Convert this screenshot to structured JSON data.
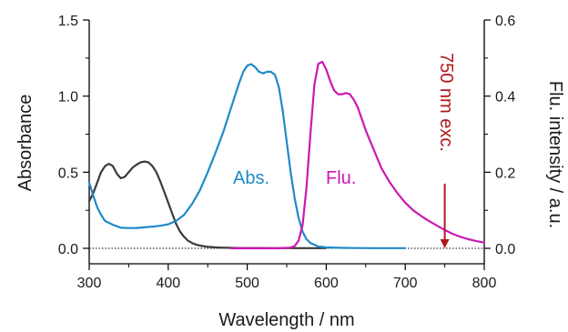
{
  "chart_data": {
    "type": "line",
    "xlabel": "Wavelength / nm",
    "ylabel_left": "Absorbance",
    "ylabel_right": "Flu. intensity / a.u.",
    "xlim": [
      300,
      800
    ],
    "ylim_left": [
      0,
      1.5
    ],
    "ylim_right": [
      0,
      0.6
    ],
    "x_ticks": [
      "300",
      "400",
      "500",
      "600",
      "700",
      "800"
    ],
    "y_left_ticks": [
      "0.0",
      "0.5",
      "1.0",
      "1.5"
    ],
    "y_right_ticks": [
      "0.0",
      "0.2",
      "0.4",
      "0.6"
    ],
    "grid": false,
    "baseline": {
      "axis": "left",
      "y": 0,
      "style": "dotted"
    },
    "series": [
      {
        "id": "dark",
        "axis": "left",
        "color": "#3a3a3a",
        "x": [
          300,
          305,
          310,
          315,
          320,
          325,
          330,
          335,
          340,
          345,
          350,
          355,
          360,
          365,
          370,
          375,
          380,
          385,
          390,
          395,
          400,
          405,
          410,
          415,
          420,
          425,
          430,
          435,
          440,
          450,
          460,
          470,
          480,
          490,
          500,
          520,
          540,
          560,
          580,
          600
        ],
        "y": [
          0.31,
          0.36,
          0.43,
          0.5,
          0.54,
          0.555,
          0.54,
          0.49,
          0.46,
          0.47,
          0.5,
          0.53,
          0.55,
          0.565,
          0.57,
          0.565,
          0.54,
          0.5,
          0.44,
          0.37,
          0.3,
          0.23,
          0.16,
          0.11,
          0.075,
          0.05,
          0.035,
          0.025,
          0.018,
          0.01,
          0.006,
          0.004,
          0.003,
          0.002,
          0.002,
          0.002,
          0.001,
          0.001,
          0.001,
          0.001
        ]
      },
      {
        "id": "abs",
        "name": "Abs.",
        "axis": "left",
        "color": "#1f8ac8",
        "x": [
          300,
          305,
          310,
          315,
          320,
          330,
          340,
          350,
          360,
          370,
          380,
          390,
          400,
          410,
          420,
          430,
          440,
          450,
          460,
          470,
          480,
          490,
          495,
          500,
          505,
          510,
          515,
          520,
          525,
          530,
          535,
          540,
          545,
          550,
          555,
          560,
          565,
          570,
          575,
          580,
          590,
          600,
          620,
          640,
          660,
          680,
          700
        ],
        "y": [
          0.43,
          0.35,
          0.27,
          0.22,
          0.18,
          0.155,
          0.135,
          0.133,
          0.134,
          0.138,
          0.142,
          0.148,
          0.158,
          0.18,
          0.22,
          0.29,
          0.38,
          0.5,
          0.63,
          0.77,
          0.93,
          1.09,
          1.16,
          1.2,
          1.21,
          1.19,
          1.16,
          1.15,
          1.16,
          1.16,
          1.14,
          1.06,
          0.9,
          0.7,
          0.5,
          0.33,
          0.2,
          0.11,
          0.06,
          0.035,
          0.012,
          0.006,
          0.003,
          0.002,
          0.001,
          0.001,
          0.001
        ]
      },
      {
        "id": "flu",
        "name": "Flu.",
        "axis": "right",
        "color": "#cc18b2",
        "x": [
          480,
          500,
          520,
          540,
          555,
          560,
          565,
          570,
          575,
          580,
          585,
          590,
          595,
          600,
          605,
          610,
          615,
          620,
          625,
          630,
          635,
          640,
          645,
          650,
          655,
          660,
          665,
          670,
          680,
          690,
          700,
          710,
          720,
          730,
          740,
          750,
          760,
          770,
          780,
          790,
          800
        ],
        "y": [
          0.0,
          0.0,
          0.0,
          0.0,
          0.002,
          0.006,
          0.02,
          0.06,
          0.16,
          0.3,
          0.43,
          0.485,
          0.49,
          0.47,
          0.44,
          0.415,
          0.405,
          0.405,
          0.408,
          0.405,
          0.39,
          0.37,
          0.34,
          0.31,
          0.285,
          0.26,
          0.235,
          0.21,
          0.175,
          0.145,
          0.12,
          0.1,
          0.085,
          0.072,
          0.06,
          0.048,
          0.038,
          0.03,
          0.024,
          0.019,
          0.015
        ]
      }
    ],
    "annotations": {
      "abs_label": {
        "text": "Abs.",
        "color": "#1f8ac8"
      },
      "flu_label": {
        "text": "Flu.",
        "color": "#cc18b2"
      },
      "excitation": {
        "text": "750 nm exc.",
        "color": "#b0181d",
        "x": 750,
        "axis": "right",
        "arrow_from": 0.17,
        "arrow_to": 0.0
      }
    }
  }
}
